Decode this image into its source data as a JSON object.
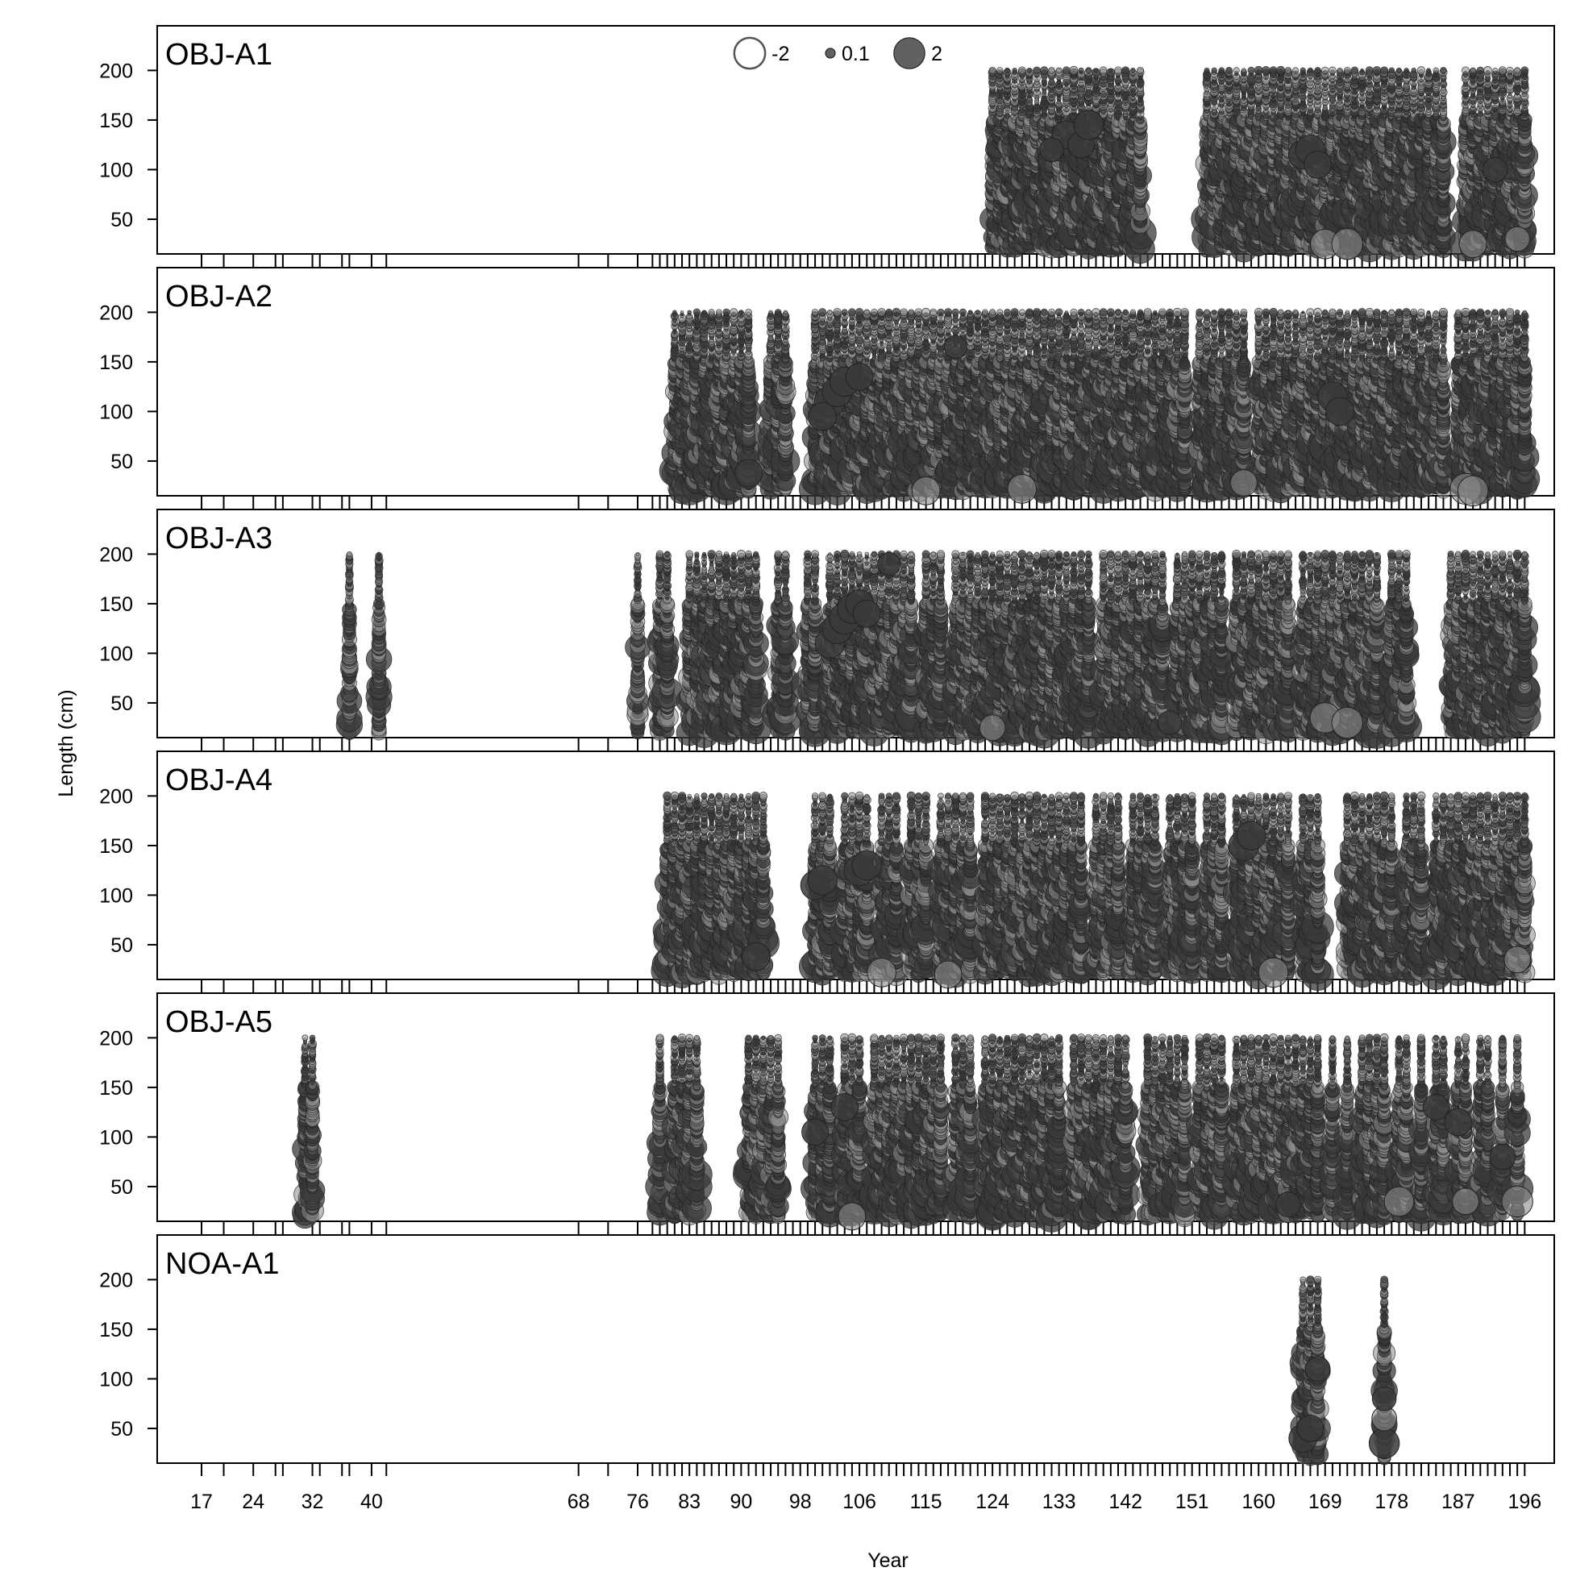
{
  "chart_data": {
    "type": "scatter",
    "subtype": "bubble residual plot, one panel per fleet",
    "xlabel": "Year",
    "ylabel": "Length (cm)",
    "xlim": [
      11,
      200
    ],
    "ylim": [
      15,
      245
    ],
    "y_ticks": [
      50,
      100,
      150,
      200
    ],
    "x_tick_labels": [
      17,
      24,
      32,
      40,
      68,
      76,
      83,
      90,
      98,
      106,
      115,
      124,
      133,
      142,
      151,
      160,
      169,
      178,
      187,
      196
    ],
    "x_minor_ticks": [
      17,
      20,
      24,
      27,
      28,
      32,
      33,
      36,
      37,
      40,
      42,
      68,
      72,
      76,
      78,
      79,
      80,
      81,
      82,
      83,
      84,
      85,
      86,
      87,
      88,
      89,
      90,
      91,
      92,
      93,
      94,
      95,
      96,
      97,
      98,
      99,
      100,
      101,
      102,
      103,
      104,
      105,
      106,
      107,
      108,
      109,
      110,
      111,
      112,
      113,
      114,
      115,
      116,
      117,
      118,
      119,
      120,
      121,
      122,
      123,
      124,
      125,
      126,
      127,
      128,
      129,
      130,
      131,
      132,
      133,
      134,
      135,
      136,
      137,
      138,
      139,
      140,
      141,
      142,
      143,
      144,
      145,
      146,
      147,
      148,
      149,
      150,
      151,
      152,
      153,
      154,
      155,
      156,
      157,
      158,
      159,
      160,
      161,
      162,
      163,
      164,
      165,
      166,
      167,
      168,
      169,
      170,
      171,
      172,
      173,
      174,
      175,
      176,
      177,
      178,
      179,
      180,
      181,
      182,
      183,
      184,
      185,
      186,
      187,
      188,
      189,
      190,
      191,
      192,
      193,
      194,
      195,
      196
    ],
    "bin_range_cm": [
      20,
      200
    ],
    "legend": {
      "placement": "top-center",
      "entries": [
        {
          "label": "-2",
          "value": -2
        },
        {
          "label": "0.1",
          "value": 0.1
        },
        {
          "label": "2",
          "value": 2
        }
      ]
    },
    "colors": {
      "positive_fill": "#3a3a3a",
      "negative_fill": "#8a8a8a",
      "stroke": "#222222",
      "axis": "#000000"
    },
    "panels": [
      {
        "name": "OBJ-A1",
        "years": [
          124,
          125,
          126,
          127,
          128,
          129,
          130,
          131,
          132,
          133,
          134,
          135,
          136,
          137,
          138,
          139,
          140,
          141,
          142,
          143,
          144,
          153,
          154,
          155,
          156,
          157,
          158,
          159,
          160,
          161,
          162,
          163,
          164,
          165,
          166,
          167,
          168,
          169,
          170,
          171,
          172,
          173,
          174,
          175,
          176,
          177,
          178,
          179,
          180,
          181,
          182,
          183,
          184,
          185,
          188,
          189,
          190,
          191,
          192,
          193,
          194,
          195,
          196
        ],
        "highlights": [
          {
            "year": 134,
            "length": 135,
            "value": 1.6
          },
          {
            "year": 136,
            "length": 125,
            "value": 1.4
          },
          {
            "year": 137,
            "length": 145,
            "value": 1.8
          },
          {
            "year": 132,
            "length": 120,
            "value": 1.1
          },
          {
            "year": 166,
            "length": 115,
            "value": 1.7
          },
          {
            "year": 167,
            "length": 120,
            "value": 1.8
          },
          {
            "year": 168,
            "length": 105,
            "value": 1.5
          },
          {
            "year": 169,
            "length": 25,
            "value": -1.8
          },
          {
            "year": 172,
            "length": 25,
            "value": -2.0
          },
          {
            "year": 189,
            "length": 25,
            "value": -1.5
          },
          {
            "year": 195,
            "length": 30,
            "value": -1.2
          },
          {
            "year": 192,
            "length": 100,
            "value": 1.2
          }
        ]
      },
      {
        "name": "OBJ-A2",
        "years": [
          81,
          82,
          83,
          84,
          85,
          86,
          87,
          88,
          89,
          90,
          91,
          94,
          95,
          96,
          100,
          101,
          102,
          103,
          104,
          105,
          106,
          107,
          108,
          109,
          110,
          111,
          112,
          113,
          114,
          115,
          116,
          117,
          118,
          119,
          120,
          121,
          122,
          123,
          124,
          125,
          126,
          127,
          128,
          129,
          130,
          131,
          132,
          133,
          134,
          135,
          136,
          137,
          138,
          139,
          140,
          141,
          142,
          143,
          144,
          145,
          146,
          147,
          148,
          149,
          150,
          152,
          153,
          154,
          155,
          156,
          157,
          158,
          160,
          161,
          162,
          163,
          164,
          165,
          166,
          167,
          168,
          169,
          170,
          171,
          172,
          173,
          174,
          175,
          176,
          177,
          178,
          179,
          180,
          181,
          182,
          183,
          184,
          185,
          187,
          188,
          189,
          190,
          191,
          192,
          193,
          194,
          195,
          196
        ],
        "highlights": [
          {
            "year": 102,
            "length": 110,
            "value": 2.0
          },
          {
            "year": 103,
            "length": 120,
            "value": 1.9
          },
          {
            "year": 104,
            "length": 130,
            "value": 1.8
          },
          {
            "year": 101,
            "length": 95,
            "value": 1.6
          },
          {
            "year": 106,
            "length": 135,
            "value": 1.5
          },
          {
            "year": 115,
            "length": 20,
            "value": -1.6
          },
          {
            "year": 128,
            "length": 22,
            "value": -1.7
          },
          {
            "year": 119,
            "length": 165,
            "value": 1.0
          },
          {
            "year": 170,
            "length": 115,
            "value": 1.8
          },
          {
            "year": 171,
            "length": 100,
            "value": 1.6
          },
          {
            "year": 188,
            "length": 22,
            "value": -2.0
          },
          {
            "year": 189,
            "length": 20,
            "value": -1.9
          },
          {
            "year": 91,
            "length": 38,
            "value": 1.5
          },
          {
            "year": 158,
            "length": 28,
            "value": -1.4
          }
        ]
      },
      {
        "name": "OBJ-A3",
        "years": [
          37,
          41,
          76,
          79,
          80,
          83,
          84,
          85,
          86,
          87,
          88,
          89,
          90,
          91,
          92,
          95,
          96,
          99,
          100,
          102,
          103,
          104,
          105,
          106,
          107,
          108,
          109,
          110,
          111,
          112,
          113,
          115,
          116,
          117,
          119,
          120,
          121,
          122,
          123,
          124,
          125,
          126,
          127,
          128,
          129,
          130,
          131,
          132,
          133,
          134,
          135,
          136,
          137,
          139,
          140,
          141,
          142,
          143,
          144,
          145,
          146,
          147,
          149,
          150,
          151,
          152,
          153,
          154,
          155,
          157,
          158,
          159,
          160,
          161,
          162,
          163,
          164,
          166,
          167,
          168,
          169,
          170,
          171,
          172,
          173,
          174,
          175,
          176,
          178,
          179,
          180,
          186,
          187,
          188,
          189,
          190,
          191,
          192,
          193,
          194,
          195,
          196
        ],
        "highlights": [
          {
            "year": 102,
            "length": 110,
            "value": 1.8
          },
          {
            "year": 103,
            "length": 125,
            "value": 1.9
          },
          {
            "year": 104,
            "length": 135,
            "value": 2.0
          },
          {
            "year": 105,
            "length": 145,
            "value": 1.8
          },
          {
            "year": 106,
            "length": 150,
            "value": 1.6
          },
          {
            "year": 107,
            "length": 140,
            "value": 1.5
          },
          {
            "year": 110,
            "length": 190,
            "value": 1.0
          },
          {
            "year": 169,
            "length": 35,
            "value": -1.9
          },
          {
            "year": 172,
            "length": 30,
            "value": -2.0
          },
          {
            "year": 124,
            "length": 25,
            "value": -1.3
          },
          {
            "year": 148,
            "length": 30,
            "value": 1.1
          }
        ]
      },
      {
        "name": "OBJ-A4",
        "years": [
          80,
          81,
          82,
          83,
          84,
          85,
          86,
          87,
          88,
          89,
          90,
          91,
          92,
          93,
          100,
          101,
          102,
          104,
          105,
          106,
          107,
          109,
          110,
          111,
          113,
          114,
          115,
          117,
          118,
          119,
          120,
          121,
          123,
          124,
          125,
          126,
          127,
          128,
          129,
          130,
          131,
          132,
          133,
          134,
          135,
          136,
          138,
          139,
          140,
          141,
          143,
          144,
          145,
          146,
          148,
          149,
          150,
          151,
          153,
          154,
          155,
          157,
          158,
          159,
          160,
          161,
          162,
          163,
          164,
          166,
          167,
          168,
          172,
          173,
          174,
          175,
          176,
          177,
          178,
          180,
          181,
          182,
          184,
          185,
          186,
          187,
          188,
          189,
          190,
          191,
          192,
          193,
          194,
          195,
          196
        ],
        "highlights": [
          {
            "year": 100,
            "length": 110,
            "value": 1.7
          },
          {
            "year": 101,
            "length": 115,
            "value": 1.8
          },
          {
            "year": 106,
            "length": 125,
            "value": 2.0
          },
          {
            "year": 107,
            "length": 130,
            "value": 1.8
          },
          {
            "year": 158,
            "length": 150,
            "value": 1.9
          },
          {
            "year": 159,
            "length": 160,
            "value": 1.7
          },
          {
            "year": 109,
            "length": 22,
            "value": -1.7
          },
          {
            "year": 118,
            "length": 20,
            "value": -1.5
          },
          {
            "year": 162,
            "length": 22,
            "value": -1.8
          },
          {
            "year": 92,
            "length": 38,
            "value": 1.6
          },
          {
            "year": 195,
            "length": 35,
            "value": -1.4
          }
        ]
      },
      {
        "name": "OBJ-A5",
        "years": [
          31,
          32,
          79,
          81,
          82,
          83,
          84,
          91,
          92,
          93,
          94,
          95,
          100,
          101,
          102,
          104,
          105,
          106,
          108,
          109,
          110,
          111,
          112,
          113,
          114,
          115,
          116,
          117,
          119,
          120,
          121,
          123,
          124,
          125,
          126,
          127,
          128,
          129,
          130,
          131,
          132,
          133,
          135,
          136,
          137,
          138,
          139,
          140,
          141,
          142,
          145,
          146,
          147,
          148,
          149,
          150,
          152,
          153,
          154,
          155,
          157,
          158,
          159,
          160,
          161,
          162,
          163,
          164,
          165,
          166,
          167,
          168,
          170,
          172,
          174,
          175,
          176,
          177,
          179,
          180,
          182,
          184,
          185,
          187,
          188,
          190,
          191,
          193,
          195
        ],
        "highlights": [
          {
            "year": 100,
            "length": 105,
            "value": 1.4
          },
          {
            "year": 104,
            "length": 130,
            "value": 1.5
          },
          {
            "year": 105,
            "length": 20,
            "value": -1.5
          },
          {
            "year": 179,
            "length": 35,
            "value": -1.8
          },
          {
            "year": 184,
            "length": 130,
            "value": 1.3
          },
          {
            "year": 187,
            "length": 115,
            "value": 1.5
          },
          {
            "year": 188,
            "length": 35,
            "value": -1.4
          },
          {
            "year": 195,
            "length": 35,
            "value": -2.0
          },
          {
            "year": 193,
            "length": 80,
            "value": 1.3
          },
          {
            "year": 164,
            "length": 32,
            "value": 1.2
          }
        ]
      },
      {
        "name": "NOA-A1",
        "years": [
          166,
          167,
          168,
          177
        ],
        "highlights": [
          {
            "year": 166,
            "length": 40,
            "value": 1.6
          },
          {
            "year": 167,
            "length": 50,
            "value": 1.4
          },
          {
            "year": 168,
            "length": 110,
            "value": 1.2
          },
          {
            "year": 177,
            "length": 35,
            "value": 1.9
          },
          {
            "year": 177,
            "length": 60,
            "value": -1.2
          },
          {
            "year": 177,
            "length": 80,
            "value": 1.1
          }
        ]
      }
    ]
  }
}
